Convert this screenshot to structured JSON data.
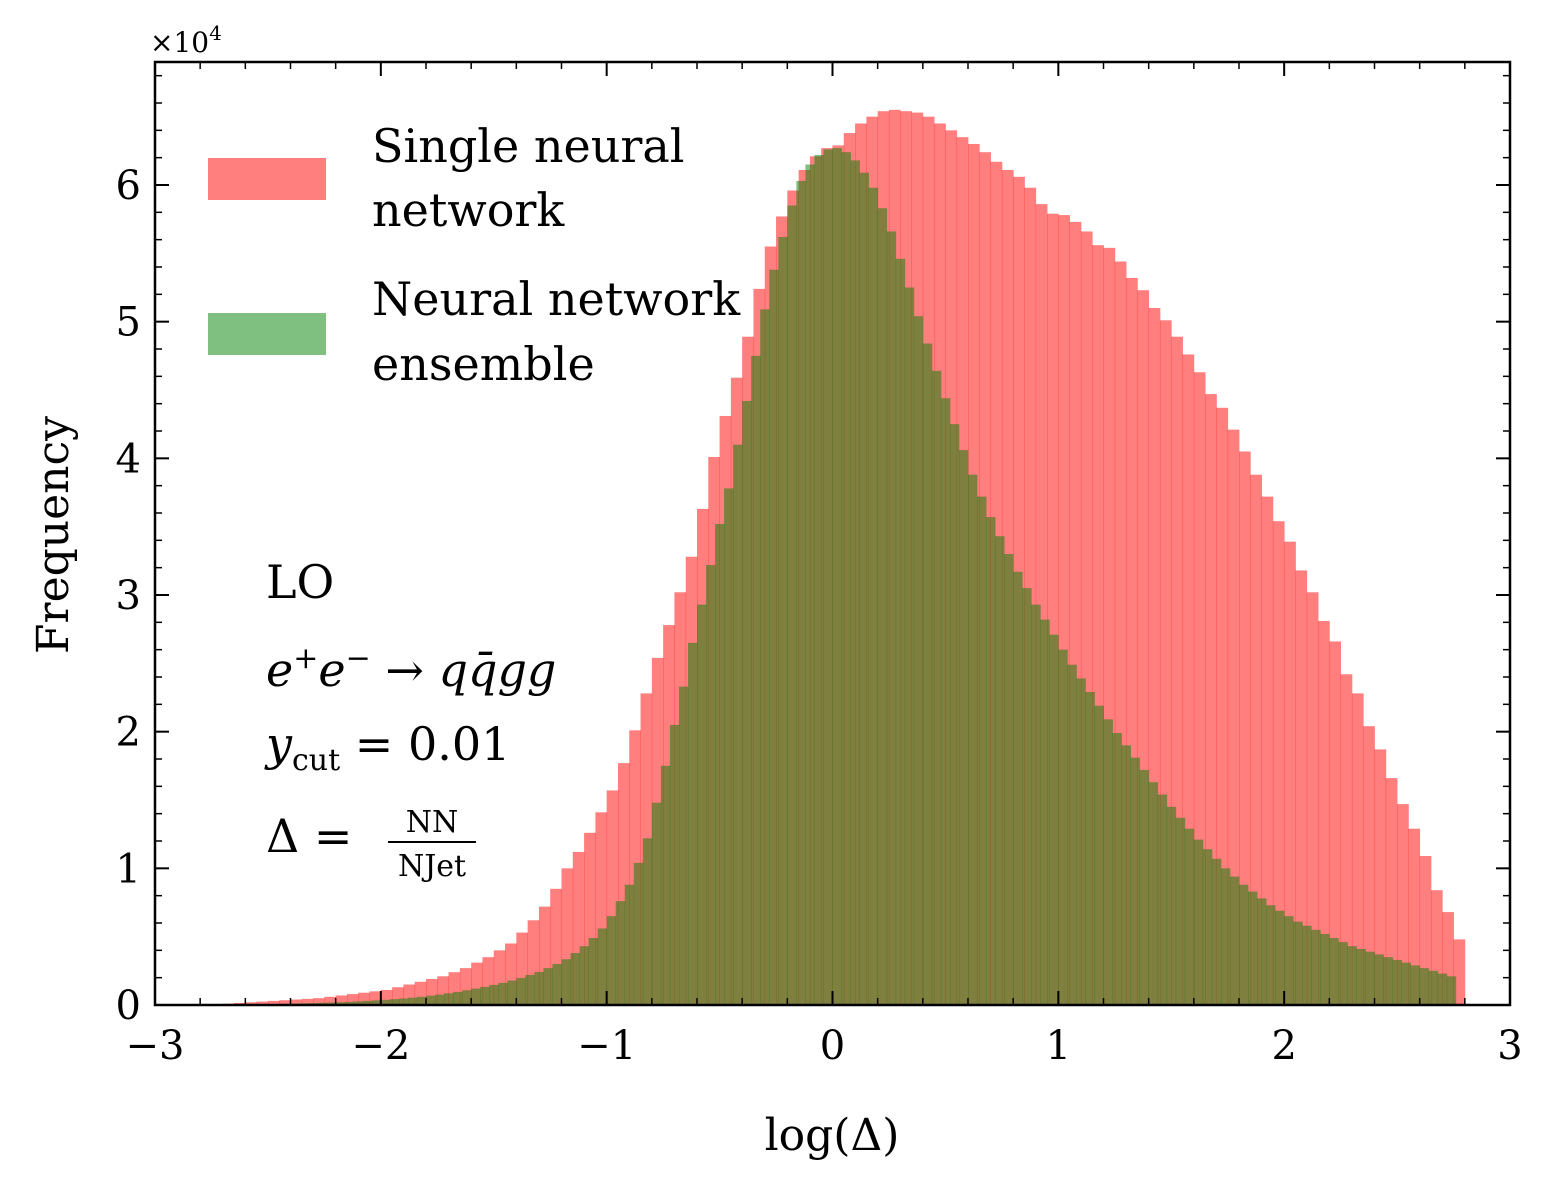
{
  "chart_data": {
    "type": "bar",
    "title": "",
    "xlabel": "log(Δ)",
    "ylabel": "Frequency",
    "y_multiplier_label": "×10",
    "y_multiplier_exp": "4",
    "xlim": [
      -3,
      3
    ],
    "ylim": [
      0,
      69000
    ],
    "x_ticks": [
      -3,
      -2,
      -1,
      0,
      1,
      2,
      3
    ],
    "x_tick_labels": [
      "−3",
      "−2",
      "−1",
      "0",
      "1",
      "2",
      "3"
    ],
    "y_ticks": [
      0,
      10000,
      20000,
      30000,
      40000,
      50000,
      60000
    ],
    "y_tick_labels": [
      "0",
      "1",
      "2",
      "3",
      "4",
      "5",
      "6"
    ],
    "grid": false,
    "legend_position": "top-left",
    "series": [
      {
        "name": "Single neural network",
        "legend_lines": [
          "Single neural",
          "network"
        ],
        "color": "#ff0000",
        "alpha": 0.5,
        "bin_width": 0.05,
        "x_start": -3.0,
        "values": [
          0,
          0,
          0,
          0,
          40,
          70,
          100,
          150,
          200,
          250,
          300,
          350,
          400,
          450,
          500,
          600,
          700,
          800,
          900,
          1000,
          1100,
          1300,
          1500,
          1700,
          1900,
          2100,
          2400,
          2700,
          3100,
          3500,
          4000,
          4500,
          5300,
          6200,
          7200,
          8500,
          10000,
          11200,
          12600,
          14100,
          15700,
          17700,
          20100,
          22800,
          25400,
          27800,
          30200,
          32800,
          36300,
          40100,
          43100,
          45900,
          48900,
          52400,
          55500,
          57700,
          59600,
          61100,
          62100,
          62700,
          62900,
          63800,
          64500,
          65000,
          65400,
          65500,
          65400,
          65300,
          65000,
          64500,
          64000,
          63500,
          63000,
          62400,
          61700,
          61100,
          60600,
          59800,
          58600,
          57900,
          57800,
          57300,
          56600,
          55600,
          55400,
          54400,
          53200,
          52300,
          51000,
          50100,
          48900,
          47600,
          46300,
          44700,
          43700,
          42100,
          40500,
          38800,
          37200,
          35400,
          33900,
          31800,
          30200,
          28100,
          26600,
          24200,
          22800,
          20400,
          18700,
          16600,
          14700,
          12900,
          10900,
          8400,
          6800,
          4800
        ]
      },
      {
        "name": "Neural network ensemble",
        "legend_lines": [
          "Neural network",
          "ensemble"
        ],
        "color": "#008000",
        "alpha": 0.5,
        "bin_width": 0.04,
        "x_start": -3.0,
        "values": [
          0,
          0,
          0,
          0,
          0,
          0,
          0,
          10,
          20,
          30,
          40,
          50,
          60,
          70,
          80,
          100,
          120,
          140,
          160,
          180,
          200,
          230,
          260,
          300,
          340,
          380,
          430,
          480,
          540,
          600,
          680,
          760,
          860,
          960,
          1080,
          1200,
          1330,
          1470,
          1620,
          1790,
          1980,
          2200,
          2420,
          2700,
          3000,
          3350,
          3800,
          4300,
          4900,
          5600,
          6500,
          7600,
          8800,
          10400,
          12200,
          14800,
          17500,
          20500,
          23300,
          26500,
          29300,
          32200,
          35200,
          37800,
          41000,
          44200,
          47500,
          50900,
          53800,
          56200,
          58500,
          60300,
          61500,
          62200,
          62600,
          62700,
          62400,
          61800,
          60900,
          59800,
          58300,
          56600,
          54600,
          52500,
          50400,
          48400,
          46400,
          44400,
          42500,
          40600,
          38800,
          37200,
          35700,
          34300,
          33000,
          31700,
          30500,
          29300,
          28200,
          27100,
          26000,
          24900,
          23900,
          22900,
          21900,
          20900,
          19900,
          19000,
          18100,
          17200,
          16300,
          15400,
          14500,
          13700,
          12900,
          12100,
          11400,
          10700,
          10000,
          9400,
          8800,
          8300,
          7800,
          7300,
          6900,
          6500,
          6100,
          5800,
          5500,
          5200,
          4900,
          4600,
          4300,
          4100,
          3900,
          3700,
          3500,
          3300,
          3100,
          2900,
          2700,
          2500,
          2300,
          2100
        ]
      }
    ],
    "annotations": {
      "order": "LO",
      "process_parts": [
        "e",
        "+",
        "e",
        "−",
        " → q",
        "q̄",
        "gg"
      ],
      "process": "e⁺e⁻ → qq̄gg",
      "ycut_symbol": "y",
      "ycut_sub": "cut",
      "ycut_rhs": " = 0.01",
      "delta_lhs": "Δ =",
      "delta_num": "NN",
      "delta_den": "NJet"
    }
  }
}
